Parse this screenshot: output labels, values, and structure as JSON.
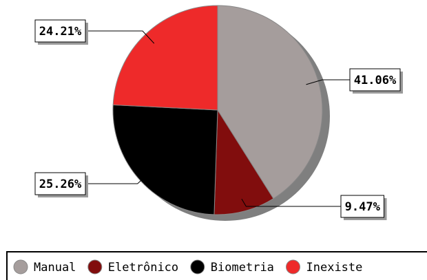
{
  "chart_data": {
    "type": "pie",
    "slices": [
      {
        "name": "Manual",
        "value": 41.06,
        "label": "41.06%",
        "color": "#a59d9c"
      },
      {
        "name": "Eletrônico",
        "value": 9.47,
        "label": "9.47%",
        "color": "#810d0d"
      },
      {
        "name": "Biometria",
        "value": 25.26,
        "label": "25.26%",
        "color": "#000000"
      },
      {
        "name": "Inexiste",
        "value": 24.21,
        "label": "24.21%",
        "color": "#ee2a2a"
      }
    ],
    "start": "top, clockwise",
    "shadow_color": "#7f7f7f",
    "legend_position": "bottom"
  }
}
